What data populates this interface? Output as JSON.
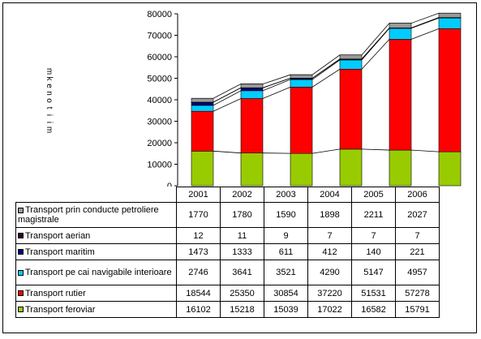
{
  "chart_data": {
    "type": "bar",
    "stacked": true,
    "categories": [
      "2001",
      "2002",
      "2003",
      "2004",
      "2005",
      "2006"
    ],
    "ylabel": "mii tone km",
    "ylim": [
      0,
      80000
    ],
    "yticks": [
      "0",
      "10000",
      "20000",
      "30000",
      "40000",
      "50000",
      "60000",
      "70000",
      "80000"
    ],
    "series": [
      {
        "name": "Transport feroviar",
        "color": "#99cc00",
        "values": [
          16102,
          15218,
          15039,
          17022,
          16582,
          15791
        ]
      },
      {
        "name": "Transport rutier",
        "color": "#ff0000",
        "values": [
          18544,
          25350,
          30854,
          37220,
          51531,
          57278
        ]
      },
      {
        "name": "Transport pe cai navigabile interioare",
        "color": "#00ccff",
        "values": [
          2746,
          3641,
          3521,
          4290,
          5147,
          4957
        ]
      },
      {
        "name": "Transport maritim",
        "color": "#000080",
        "values": [
          1473,
          1333,
          611,
          412,
          140,
          221
        ]
      },
      {
        "name": "Transport aerian",
        "color": "#330033",
        "values": [
          12,
          11,
          9,
          7,
          7,
          7
        ]
      },
      {
        "name": "Transport prin conducte petroliere magistrale",
        "color": "#999999",
        "values": [
          1770,
          1780,
          1590,
          1898,
          2211,
          2027
        ]
      }
    ],
    "grid": false,
    "legend": "data-table"
  },
  "table": {
    "years": [
      "2001",
      "2002",
      "2003",
      "2004",
      "2005",
      "2006"
    ],
    "rows": [
      {
        "label": "Transport prin conducte petroliere magistrale",
        "color": "#999999",
        "values": [
          "1770",
          "1780",
          "1590",
          "1898",
          "2211",
          "2027"
        ]
      },
      {
        "label": "Transport aerian",
        "color": "#330033",
        "values": [
          "12",
          "11",
          "9",
          "7",
          "7",
          "7"
        ]
      },
      {
        "label": "Transport maritim",
        "color": "#000080",
        "values": [
          "1473",
          "1333",
          "611",
          "412",
          "140",
          "221"
        ]
      },
      {
        "label": "Transport pe cai navigabile interioare",
        "color": "#00ccff",
        "values": [
          "2746",
          "3641",
          "3521",
          "4290",
          "5147",
          "4957"
        ]
      },
      {
        "label": "Transport rutier",
        "color": "#ff0000",
        "values": [
          "18544",
          "25350",
          "30854",
          "37220",
          "51531",
          "57278"
        ]
      },
      {
        "label": "Transport feroviar",
        "color": "#99cc00",
        "values": [
          "16102",
          "15218",
          "15039",
          "17022",
          "16582",
          "15791"
        ]
      }
    ]
  }
}
